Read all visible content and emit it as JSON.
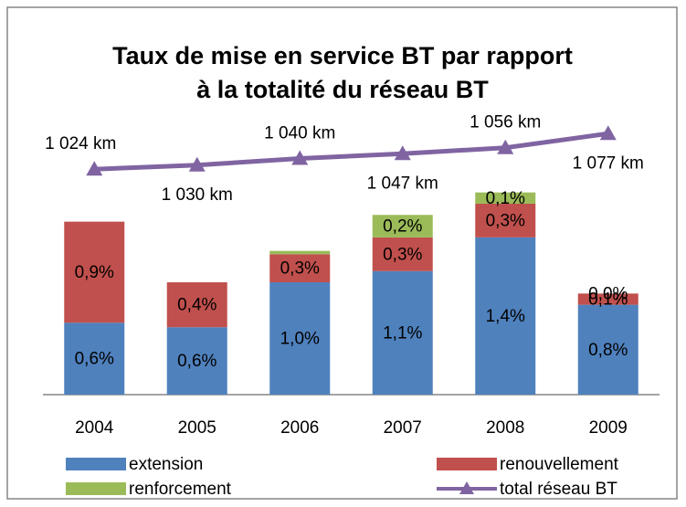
{
  "chart_data": {
    "type": "bar",
    "title": [
      "Taux de mise en service BT par rapport",
      "à la totalité du réseau BT"
    ],
    "categories": [
      "2004",
      "2005",
      "2006",
      "2007",
      "2008",
      "2009"
    ],
    "stacked": true,
    "ylim": [
      0,
      2.7
    ],
    "y2lim": [
      688,
      1140
    ],
    "series": [
      {
        "name": "extension",
        "color": "#4f81bd",
        "type": "bar",
        "values": [
          0.64,
          0.6,
          1.0,
          1.1,
          1.4,
          0.8
        ],
        "value_labels": [
          "0,6%",
          "0,6%",
          "1,0%",
          "1,1%",
          "1,4%",
          "0,8%"
        ]
      },
      {
        "name": "renouvellement",
        "color": "#c0504d",
        "type": "bar",
        "values": [
          0.9,
          0.4,
          0.25,
          0.3,
          0.3,
          0.1
        ],
        "value_labels": [
          "0,9%",
          "0,4%",
          "0,3%",
          "0,3%",
          "0,3%",
          "0,1%"
        ]
      },
      {
        "name": "renforcement",
        "color": "#9bbb59",
        "type": "bar",
        "values": [
          null,
          null,
          0.03,
          0.2,
          0.1,
          0.0
        ],
        "value_labels": [
          null,
          null,
          null,
          "0,2%",
          "0,1%",
          "0,0%"
        ]
      },
      {
        "name": "total réseau BT",
        "color": "#8064a2",
        "type": "line",
        "axis": "y2",
        "values": [
          1024,
          1030,
          1040,
          1047,
          1056,
          1077
        ],
        "value_labels": [
          "1 024 km",
          "1 030 km",
          "1 040 km",
          "1 047 km",
          "1 056 km",
          "1 077 km"
        ]
      }
    ]
  }
}
